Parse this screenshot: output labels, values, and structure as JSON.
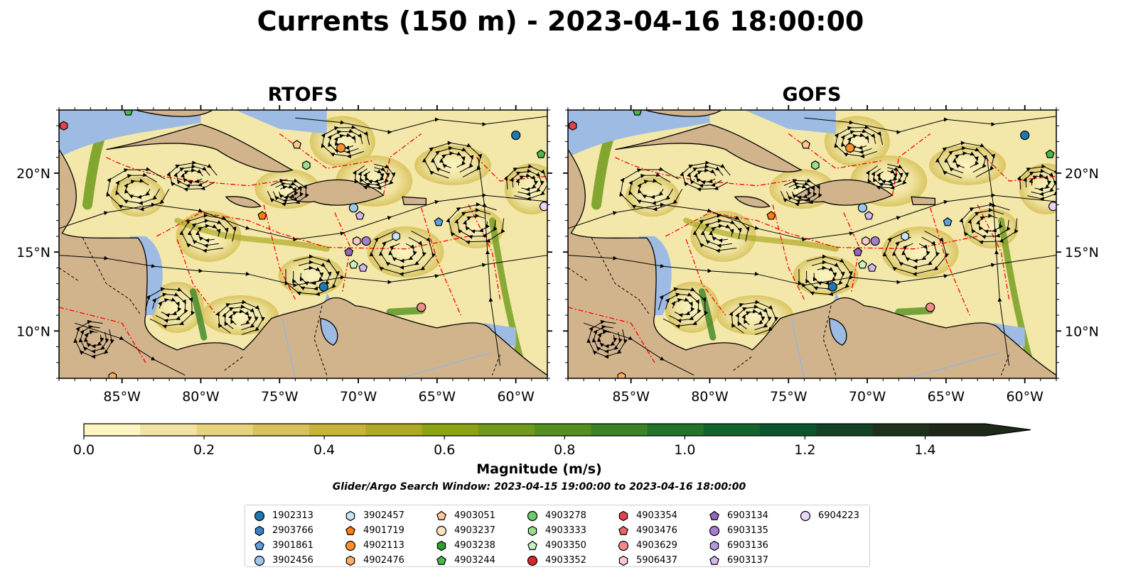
{
  "title": "Currents (150 m) - 2023-04-16 18:00:00",
  "panels": [
    {
      "title": "RTOFS"
    },
    {
      "title": "GOFS"
    }
  ],
  "map": {
    "lon_range": [
      -89.0,
      -58.0
    ],
    "lat_range": [
      7.0,
      24.0
    ],
    "x_ticks": [
      "85°W",
      "80°W",
      "75°W",
      "70°W",
      "65°W",
      "60°W"
    ],
    "y_ticks": [
      "20°N",
      "15°N",
      "10°N"
    ],
    "land_color": "#d2b48c",
    "shallow_water_color": "#9dbbe3",
    "eez_line_color": "#ff0000",
    "streamline_color": "#000000"
  },
  "colorbar": {
    "label": "Magnitude (m/s)",
    "min": 0.0,
    "max": 1.5,
    "extend": "max",
    "tick_labels": [
      "0.0",
      "0.2",
      "0.4",
      "0.6",
      "0.8",
      "1.0",
      "1.2",
      "1.4"
    ],
    "colors": [
      "#fdf6c3",
      "#f0e4a0",
      "#e5d37d",
      "#d8c25b",
      "#c8b43d",
      "#aeaa25",
      "#8ca314",
      "#6f9a1b",
      "#54901f",
      "#3a8424",
      "#217429",
      "#11642c",
      "#0b552c",
      "#134224",
      "#1d311c",
      "#1c2818"
    ]
  },
  "search_window": "Glider/Argo Search Window: 2023-04-15 19:00:00 to 2023-04-16 18:00:00",
  "legend": [
    {
      "label": "1902313",
      "marker": "circle",
      "color": "#1f77b4"
    },
    {
      "label": "2903766",
      "marker": "hexagon",
      "color": "#3b82c4"
    },
    {
      "label": "3901861",
      "marker": "pentagon",
      "color": "#5ea0dc"
    },
    {
      "label": "3902456",
      "marker": "circle",
      "color": "#9cc8ec"
    },
    {
      "label": "3902457",
      "marker": "hexagon",
      "color": "#c6e4f7"
    },
    {
      "label": "4901719",
      "marker": "pentagon",
      "color": "#ff7f0e"
    },
    {
      "label": "4902113",
      "marker": "circle",
      "color": "#ff8f2e"
    },
    {
      "label": "4902476",
      "marker": "hexagon",
      "color": "#ffae66"
    },
    {
      "label": "4903051",
      "marker": "pentagon",
      "color": "#ffc896"
    },
    {
      "label": "4903237",
      "marker": "circle",
      "color": "#ffe1c4"
    },
    {
      "label": "4903238",
      "marker": "hexagon",
      "color": "#2ca02c"
    },
    {
      "label": "4903244",
      "marker": "pentagon",
      "color": "#4cb84c"
    },
    {
      "label": "4903278",
      "marker": "circle",
      "color": "#6ccb6c"
    },
    {
      "label": "4903333",
      "marker": "hexagon",
      "color": "#98df8a"
    },
    {
      "label": "4903350",
      "marker": "pentagon",
      "color": "#c8f2c0"
    },
    {
      "label": "4903352",
      "marker": "circle",
      "color": "#d62728"
    },
    {
      "label": "4903354",
      "marker": "hexagon",
      "color": "#e04446"
    },
    {
      "label": "4903476",
      "marker": "pentagon",
      "color": "#eb6668"
    },
    {
      "label": "4903629",
      "marker": "circle",
      "color": "#f18b8c"
    },
    {
      "label": "5906437",
      "marker": "hexagon",
      "color": "#fbc9c9"
    },
    {
      "label": "6903134",
      "marker": "pentagon",
      "color": "#9467bd"
    },
    {
      "label": "6903135",
      "marker": "circle",
      "color": "#a77ecf"
    },
    {
      "label": "6903136",
      "marker": "hexagon",
      "color": "#b799dd"
    },
    {
      "label": "6903137",
      "marker": "pentagon",
      "color": "#d1b8ee"
    },
    {
      "label": "6904223",
      "marker": "circle",
      "color": "#ead6fb"
    }
  ],
  "observations": [
    {
      "label": "4903354",
      "lon": -88.7,
      "lat": 23.0
    },
    {
      "label": "4903244",
      "lon": -84.6,
      "lat": 23.9
    },
    {
      "label": "1902313",
      "lon": -60.0,
      "lat": 22.4
    },
    {
      "label": "4903244",
      "lon": -58.4,
      "lat": 21.2
    },
    {
      "label": "4903051",
      "lon": -73.9,
      "lat": 21.8
    },
    {
      "label": "4902113",
      "lon": -71.1,
      "lat": 21.6
    },
    {
      "label": "4903333",
      "lon": -73.3,
      "lat": 20.5
    },
    {
      "label": "4901719",
      "lon": -76.1,
      "lat": 17.3
    },
    {
      "label": "3902456",
      "lon": -70.3,
      "lat": 17.8
    },
    {
      "label": "6903137",
      "lon": -69.9,
      "lat": 17.3
    },
    {
      "label": "3901861",
      "lon": -64.9,
      "lat": 16.9
    },
    {
      "label": "3902457",
      "lon": -67.6,
      "lat": 16.0
    },
    {
      "label": "5906437",
      "lon": -70.1,
      "lat": 15.7
    },
    {
      "label": "6903135",
      "lon": -69.5,
      "lat": 15.7
    },
    {
      "label": "6903134",
      "lon": -70.6,
      "lat": 15.0
    },
    {
      "label": "4903350",
      "lon": -70.3,
      "lat": 14.2
    },
    {
      "label": "6903137",
      "lon": -69.7,
      "lat": 14.0
    },
    {
      "label": "1902313",
      "lon": -72.2,
      "lat": 12.8
    },
    {
      "label": "4903629",
      "lon": -66.0,
      "lat": 11.5
    },
    {
      "label": "6904223",
      "lon": -58.2,
      "lat": 17.9
    },
    {
      "label": "4902476",
      "lon": -85.6,
      "lat": 7.1
    }
  ]
}
